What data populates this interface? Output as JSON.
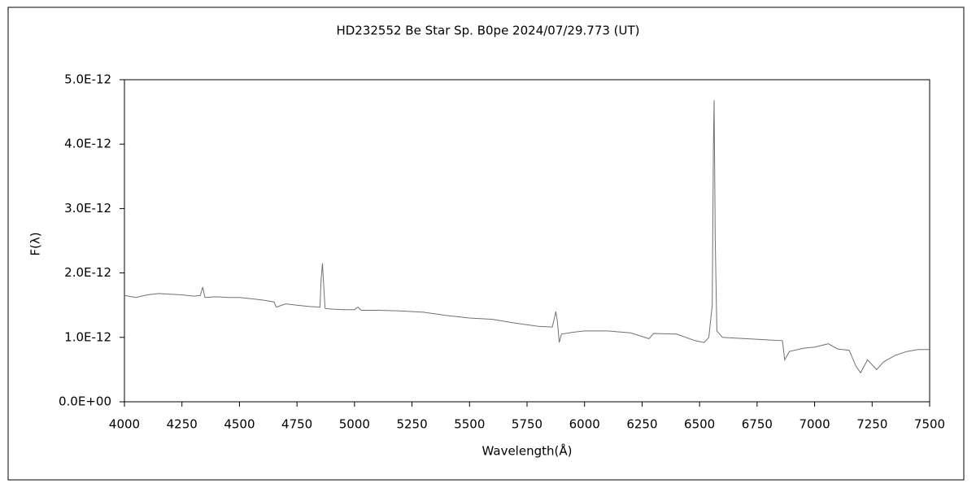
{
  "chart_data": {
    "type": "line",
    "title": "HD232552    Be Star    Sp. B0pe    2024/07/29.773 (UT)",
    "xlabel": "Wavelength(Å)",
    "ylabel": "F(λ)",
    "color": "#707070",
    "x": [
      4000,
      4050,
      4100,
      4150,
      4200,
      4250,
      4300,
      4330,
      4340,
      4350,
      4400,
      4450,
      4500,
      4550,
      4600,
      4650,
      4660,
      4700,
      4750,
      4800,
      4850,
      4855,
      4861,
      4866,
      4872,
      4900,
      4950,
      5000,
      5015,
      5030,
      5100,
      5200,
      5300,
      5400,
      5500,
      5600,
      5700,
      5800,
      5860,
      5875,
      5882,
      5890,
      5900,
      5950,
      6000,
      6100,
      6200,
      6280,
      6300,
      6400,
      6480,
      6520,
      6540,
      6555,
      6560,
      6563,
      6568,
      6575,
      6600,
      6700,
      6800,
      6860,
      6870,
      6890,
      6950,
      7000,
      7060,
      7100,
      7150,
      7180,
      7200,
      7230,
      7270,
      7300,
      7350,
      7400,
      7450,
      7500
    ],
    "values": [
      1.65e-12,
      1.62e-12,
      1.66e-12,
      1.68e-12,
      1.67e-12,
      1.66e-12,
      1.64e-12,
      1.65e-12,
      1.78e-12,
      1.62e-12,
      1.63e-12,
      1.62e-12,
      1.62e-12,
      1.6e-12,
      1.58e-12,
      1.55e-12,
      1.47e-12,
      1.52e-12,
      1.5e-12,
      1.48e-12,
      1.47e-12,
      1.9e-12,
      2.15e-12,
      1.8e-12,
      1.45e-12,
      1.44e-12,
      1.43e-12,
      1.43e-12,
      1.47e-12,
      1.42e-12,
      1.42e-12,
      1.41e-12,
      1.39e-12,
      1.34e-12,
      1.3e-12,
      1.28e-12,
      1.22e-12,
      1.17e-12,
      1.16e-12,
      1.4e-12,
      1.25e-12,
      9.2e-13,
      1.05e-12,
      1.08e-12,
      1.1e-12,
      1.1e-12,
      1.07e-12,
      9.8e-13,
      1.06e-12,
      1.05e-12,
      9.5e-13,
      9.2e-13,
      1e-12,
      1.5e-12,
      3.9e-12,
      4.68e-12,
      2.5e-12,
      1.1e-12,
      1e-12,
      9.8e-13,
      9.6e-13,
      9.5e-13,
      6.5e-13,
      7.8e-13,
      8.3e-13,
      8.5e-13,
      9e-13,
      8.2e-13,
      8e-13,
      5.5e-13,
      4.5e-13,
      6.5e-13,
      5e-13,
      6.2e-13,
      7.2e-13,
      7.8e-13,
      8.1e-13,
      8.1e-13
    ],
    "xlim": [
      4000,
      7500
    ],
    "xticks": [
      4000,
      4250,
      4500,
      4750,
      5000,
      5250,
      5500,
      5750,
      6000,
      6250,
      6500,
      6750,
      7000,
      7250,
      7500
    ],
    "ylim": [
      0,
      5e-12
    ],
    "yticks": [
      {
        "value": 0,
        "label": "0.0E+00"
      },
      {
        "value": 1e-12,
        "label": "1.0E-12"
      },
      {
        "value": 2e-12,
        "label": "2.0E-12"
      },
      {
        "value": 3e-12,
        "label": "3.0E-12"
      },
      {
        "value": 4e-12,
        "label": "4.0E-12"
      },
      {
        "value": 5e-12,
        "label": "5.0E-12"
      }
    ],
    "grid": false
  }
}
